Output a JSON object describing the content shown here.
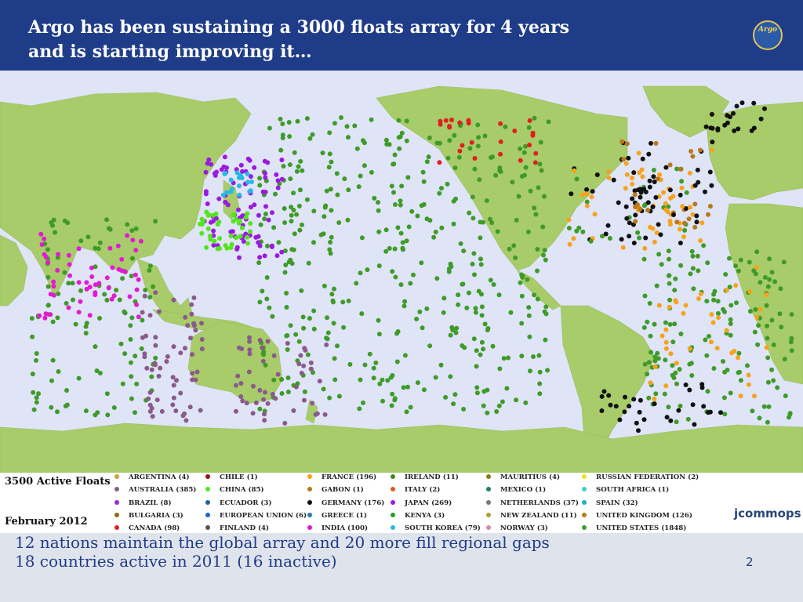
{
  "header": {
    "title_line1": "Argo has been sustaining a 3000 floats array for 4 years",
    "title_line2": "and is starting improving  it…",
    "logo_text": "Argo"
  },
  "map": {
    "ocean_color": "#dfe4f7",
    "land_color": "#a8cc6a",
    "dominant_float_color": "#3f9b28"
  },
  "legend": {
    "active_floats": "3500 Active Floats",
    "date": "February 2012",
    "countries": [
      {
        "label": "ARGENTINA (4)",
        "color": "#c9a23a"
      },
      {
        "label": "AUSTRALIA (385)",
        "color": "#8a5a8a"
      },
      {
        "label": "BRAZIL (8)",
        "color": "#9b2bd4"
      },
      {
        "label": "BULGARIA (3)",
        "color": "#8c6a1c"
      },
      {
        "label": "CANADA (98)",
        "color": "#e02020"
      },
      {
        "label": "CHILE (1)",
        "color": "#a01010"
      },
      {
        "label": "CHINA (85)",
        "color": "#54e51c"
      },
      {
        "label": "ECUADOR (3)",
        "color": "#1f5fa0"
      },
      {
        "label": "EUROPEAN UNION (6)",
        "color": "#2060e0"
      },
      {
        "label": "FINLAND (4)",
        "color": "#555555"
      },
      {
        "label": "FRANCE (196)",
        "color": "#f7a21b"
      },
      {
        "label": "GABON (1)",
        "color": "#b07a20"
      },
      {
        "label": "GERMANY (176)",
        "color": "#111111"
      },
      {
        "label": "GREECE (1)",
        "color": "#2a7ab0"
      },
      {
        "label": "INDIA (100)",
        "color": "#e21bd0"
      },
      {
        "label": "IRELAND (11)",
        "color": "#3a8a20"
      },
      {
        "label": "ITALY (2)",
        "color": "#e05a1a"
      },
      {
        "label": "JAPAN (269)",
        "color": "#9a1ae0"
      },
      {
        "label": "KENYA (3)",
        "color": "#2a9a2a"
      },
      {
        "label": "SOUTH KOREA (79)",
        "color": "#27b8e5"
      },
      {
        "label": "MAURITIUS (4)",
        "color": "#8a7a20"
      },
      {
        "label": "MEXICO (1)",
        "color": "#20806a"
      },
      {
        "label": "NETHERLANDS (37)",
        "color": "#777777"
      },
      {
        "label": "NEW ZEALAND (11)",
        "color": "#b0a040"
      },
      {
        "label": "NORWAY (3)",
        "color": "#e08a9a"
      },
      {
        "label": "RUSSIAN FEDERATION (2)",
        "color": "#f0e020"
      },
      {
        "label": "SOUTH AFRICA (1)",
        "color": "#3ad0d0"
      },
      {
        "label": "SPAIN (32)",
        "color": "#1ab0d0"
      },
      {
        "label": "UNITED KINGDOM (126)",
        "color": "#b8781c"
      },
      {
        "label": "UNITED STATES (1848)",
        "color": "#3f9b28"
      }
    ],
    "partner_logo": "jcommops"
  },
  "footer": {
    "line1": "12 nations maintain the global array and 20 more fill regional gaps",
    "line2": "18 countries active in 2011 (16 inactive)",
    "page": "2"
  }
}
